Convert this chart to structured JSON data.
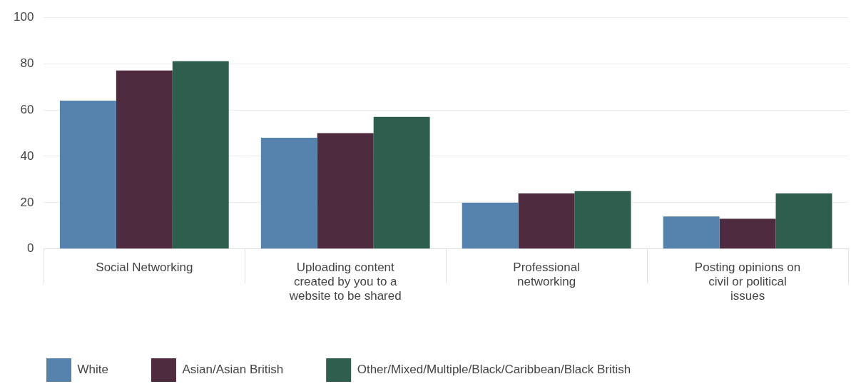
{
  "chart_data": {
    "type": "bar",
    "categories": [
      "Social Networking",
      "Uploading content created by you to a website to be shared",
      "Professional networking",
      "Posting opinions on civil or political issues"
    ],
    "series": [
      {
        "name": "White",
        "color": "#5583ae",
        "values": [
          64,
          48,
          20,
          14
        ]
      },
      {
        "name": "Asian/Asian British",
        "color": "#4f2b40",
        "values": [
          77,
          50,
          24,
          13
        ]
      },
      {
        "name": "Other/Mixed/Multiple/Black/Caribbean/Black British",
        "color": "#2e5e4e",
        "values": [
          81,
          57,
          25,
          24
        ]
      }
    ],
    "ylim": [
      0,
      100
    ],
    "yticks": [
      0,
      20,
      40,
      60,
      80,
      100
    ],
    "grid": "y",
    "legend": "bottom"
  }
}
